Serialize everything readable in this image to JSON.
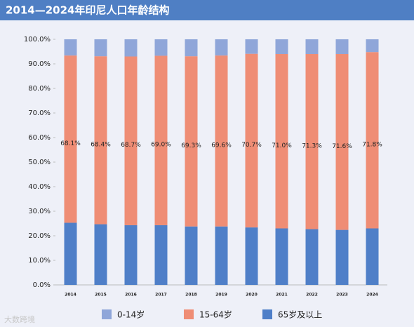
{
  "chart_data": {
    "type": "stacked_bar",
    "title": "2014—2024年印尼人口年龄结构",
    "categories": [
      "2014",
      "2015",
      "2016",
      "2017",
      "2018",
      "2019",
      "2020",
      "2021",
      "2022",
      "2023",
      "2024"
    ],
    "series": [
      {
        "name": "0-14岁",
        "color": "#8fa6d9",
        "values": [
          6.6,
          6.9,
          7.0,
          6.7,
          6.9,
          6.6,
          5.9,
          6.0,
          6.0,
          6.0,
          5.2
        ]
      },
      {
        "name": "15-64岁",
        "color": "#ef8d75",
        "values": [
          68.1,
          68.4,
          68.7,
          69.0,
          69.3,
          69.6,
          70.7,
          71.0,
          71.3,
          71.6,
          71.8
        ],
        "value_labels": [
          "68.1%",
          "68.4%",
          "68.7%",
          "69.0%",
          "69.3%",
          "69.6%",
          "70.7%",
          "71.0%",
          "71.3%",
          "71.6%",
          "71.8%"
        ]
      },
      {
        "name": "65岁及以上",
        "color": "#4f7fc8",
        "values": [
          25.3,
          24.7,
          24.3,
          24.3,
          23.8,
          23.8,
          23.4,
          23.0,
          22.7,
          22.4,
          23.0
        ]
      }
    ],
    "ylim": [
      0,
      100
    ],
    "yticks": [
      {
        "value": 0,
        "label": "0.0%"
      },
      {
        "value": 10,
        "label": "10.0%"
      },
      {
        "value": 20,
        "label": "20.0%"
      },
      {
        "value": 30,
        "label": "30.0%"
      },
      {
        "value": 40,
        "label": "40.0%"
      },
      {
        "value": 50,
        "label": "50.0%"
      },
      {
        "value": 60,
        "label": "60.0%"
      },
      {
        "value": 70,
        "label": "70.0%"
      },
      {
        "value": 80,
        "label": "80.0%"
      },
      {
        "value": 90,
        "label": "90.0%"
      },
      {
        "value": 100,
        "label": "100.0%"
      }
    ],
    "legend": "bottom",
    "watermark": "大数跨境"
  }
}
